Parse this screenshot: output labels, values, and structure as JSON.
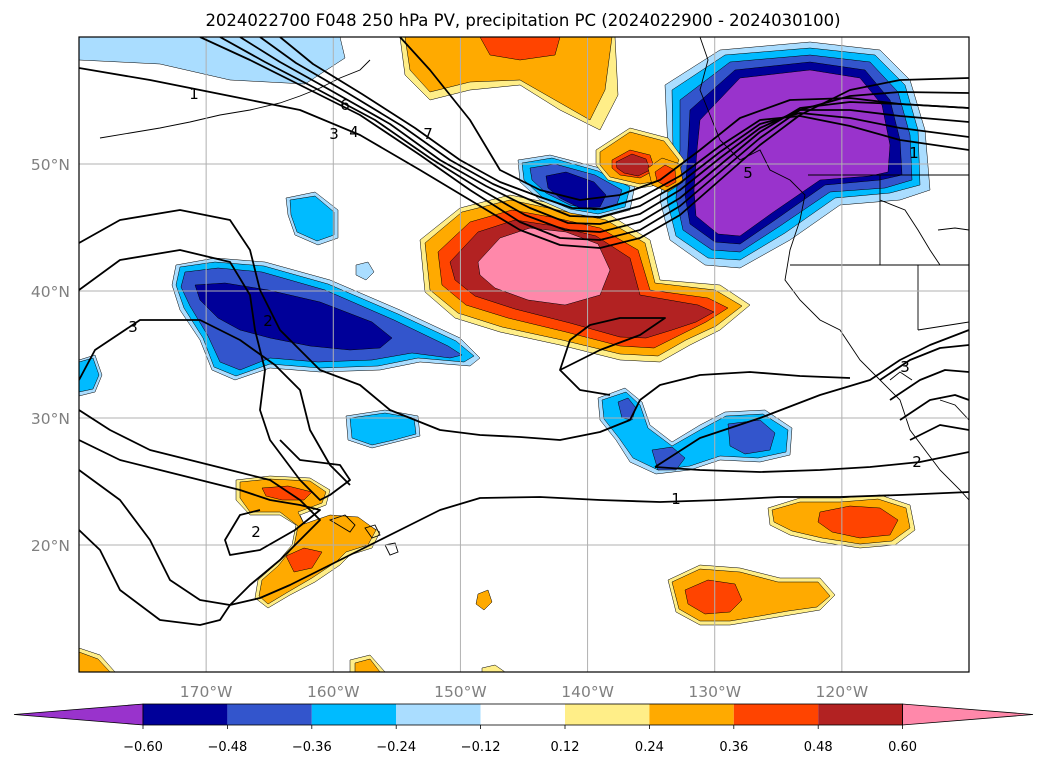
{
  "title": "2024022700 F048 250 hPa PV, precipitation PC (2024022900 - 2024030100)",
  "colors": {
    "neg_060": "#9933cc",
    "neg_048": "#000099",
    "neg_036": "#3355cc",
    "neg_024": "#00bbff",
    "neg_012": "#aaddff",
    "pos_012": "#ffee88",
    "pos_024": "#ffaa00",
    "pos_036": "#ff4400",
    "pos_048": "#b22222",
    "pos_060": "#ff88aa",
    "contour": "#000000",
    "grid": "#b0b0b0",
    "tick_label": "#808080"
  },
  "map": {
    "projection": "equirectangular",
    "lon_range": [
      -180,
      -110
    ],
    "lat_range": [
      10,
      60
    ],
    "lat_ticks": [
      "50°N",
      "40°N",
      "30°N",
      "20°N"
    ],
    "lon_ticks": [
      "170°W",
      "160°W",
      "150°W",
      "140°W",
      "130°W",
      "120°W"
    ],
    "grid": true,
    "contour_field": "250 hPa PV",
    "contour_labels": [
      "1",
      "3",
      "4",
      "6",
      "7",
      "5",
      "1",
      "3",
      "2",
      "2",
      "2",
      "1",
      "3"
    ]
  },
  "colorbar": {
    "orientation": "horizontal",
    "extend": "both",
    "ticks": [
      "−0.60",
      "−0.48",
      "−0.36",
      "−0.24",
      "−0.12",
      "0.12",
      "0.24",
      "0.36",
      "0.48",
      "0.60"
    ]
  }
}
